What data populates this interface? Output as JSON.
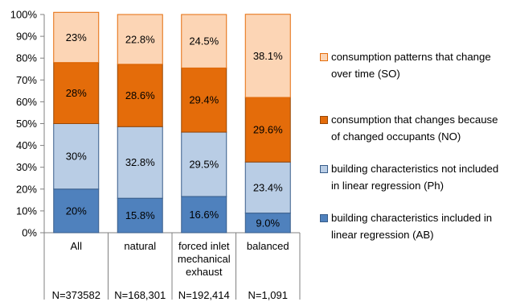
{
  "chart_data": {
    "type": "bar",
    "stacked": true,
    "normalized": true,
    "categories": [
      "All",
      "natural",
      "forced inlet mechanical exhaust",
      "balanced"
    ],
    "n_labels": [
      "N=373582",
      "N=168,301",
      "N=192,414",
      "N=1,091"
    ],
    "ylim": [
      0,
      100
    ],
    "yticks": [
      "0%",
      "10%",
      "20%",
      "30%",
      "40%",
      "50%",
      "60%",
      "70%",
      "80%",
      "90%",
      "100%"
    ],
    "grid": false,
    "legend_position": "right",
    "series": [
      {
        "name": "building characteristics included in linear regression (AB)",
        "color": "#4f81bd",
        "edge": "#385d8a",
        "values": [
          20,
          15.8,
          16.6,
          9.0
        ],
        "labels": [
          "20%",
          "15.8%",
          "16.6%",
          "9.0%"
        ]
      },
      {
        "name": "building characteristics not included in linear regression (Ph)",
        "color": "#b9cde5",
        "edge": "#385d8a",
        "values": [
          30,
          32.8,
          29.5,
          23.4
        ],
        "labels": [
          "30%",
          "32.8%",
          "29.5%",
          "23.4%"
        ]
      },
      {
        "name": "consumption that changes because of changed occupants (NO)",
        "color": "#e46c0a",
        "edge": "#984807",
        "values": [
          28,
          28.6,
          29.4,
          29.6
        ],
        "labels": [
          "28%",
          "28.6%",
          "29.4%",
          "29.6%"
        ]
      },
      {
        "name": "consumption patterns that change over time (SO)",
        "color": "#fcd5b5",
        "edge": "#e46c0a",
        "values": [
          23,
          22.8,
          24.5,
          38.1
        ],
        "labels": [
          "23%",
          "22.8%",
          "24.5%",
          "38.1%"
        ]
      }
    ]
  },
  "legend": {
    "items": [
      {
        "text": "consumption patterns that change over time (SO)",
        "color": "#fcd5b5",
        "edge": "#e46c0a"
      },
      {
        "text": "consumption that changes because of changed occupants (NO)",
        "color": "#e46c0a",
        "edge": "#984807"
      },
      {
        "text": "building characteristics not included in linear regression (Ph)",
        "color": "#b9cde5",
        "edge": "#385d8a"
      },
      {
        "text": "building characteristics included in linear regression (AB)",
        "color": "#4f81bd",
        "edge": "#385d8a"
      }
    ]
  }
}
